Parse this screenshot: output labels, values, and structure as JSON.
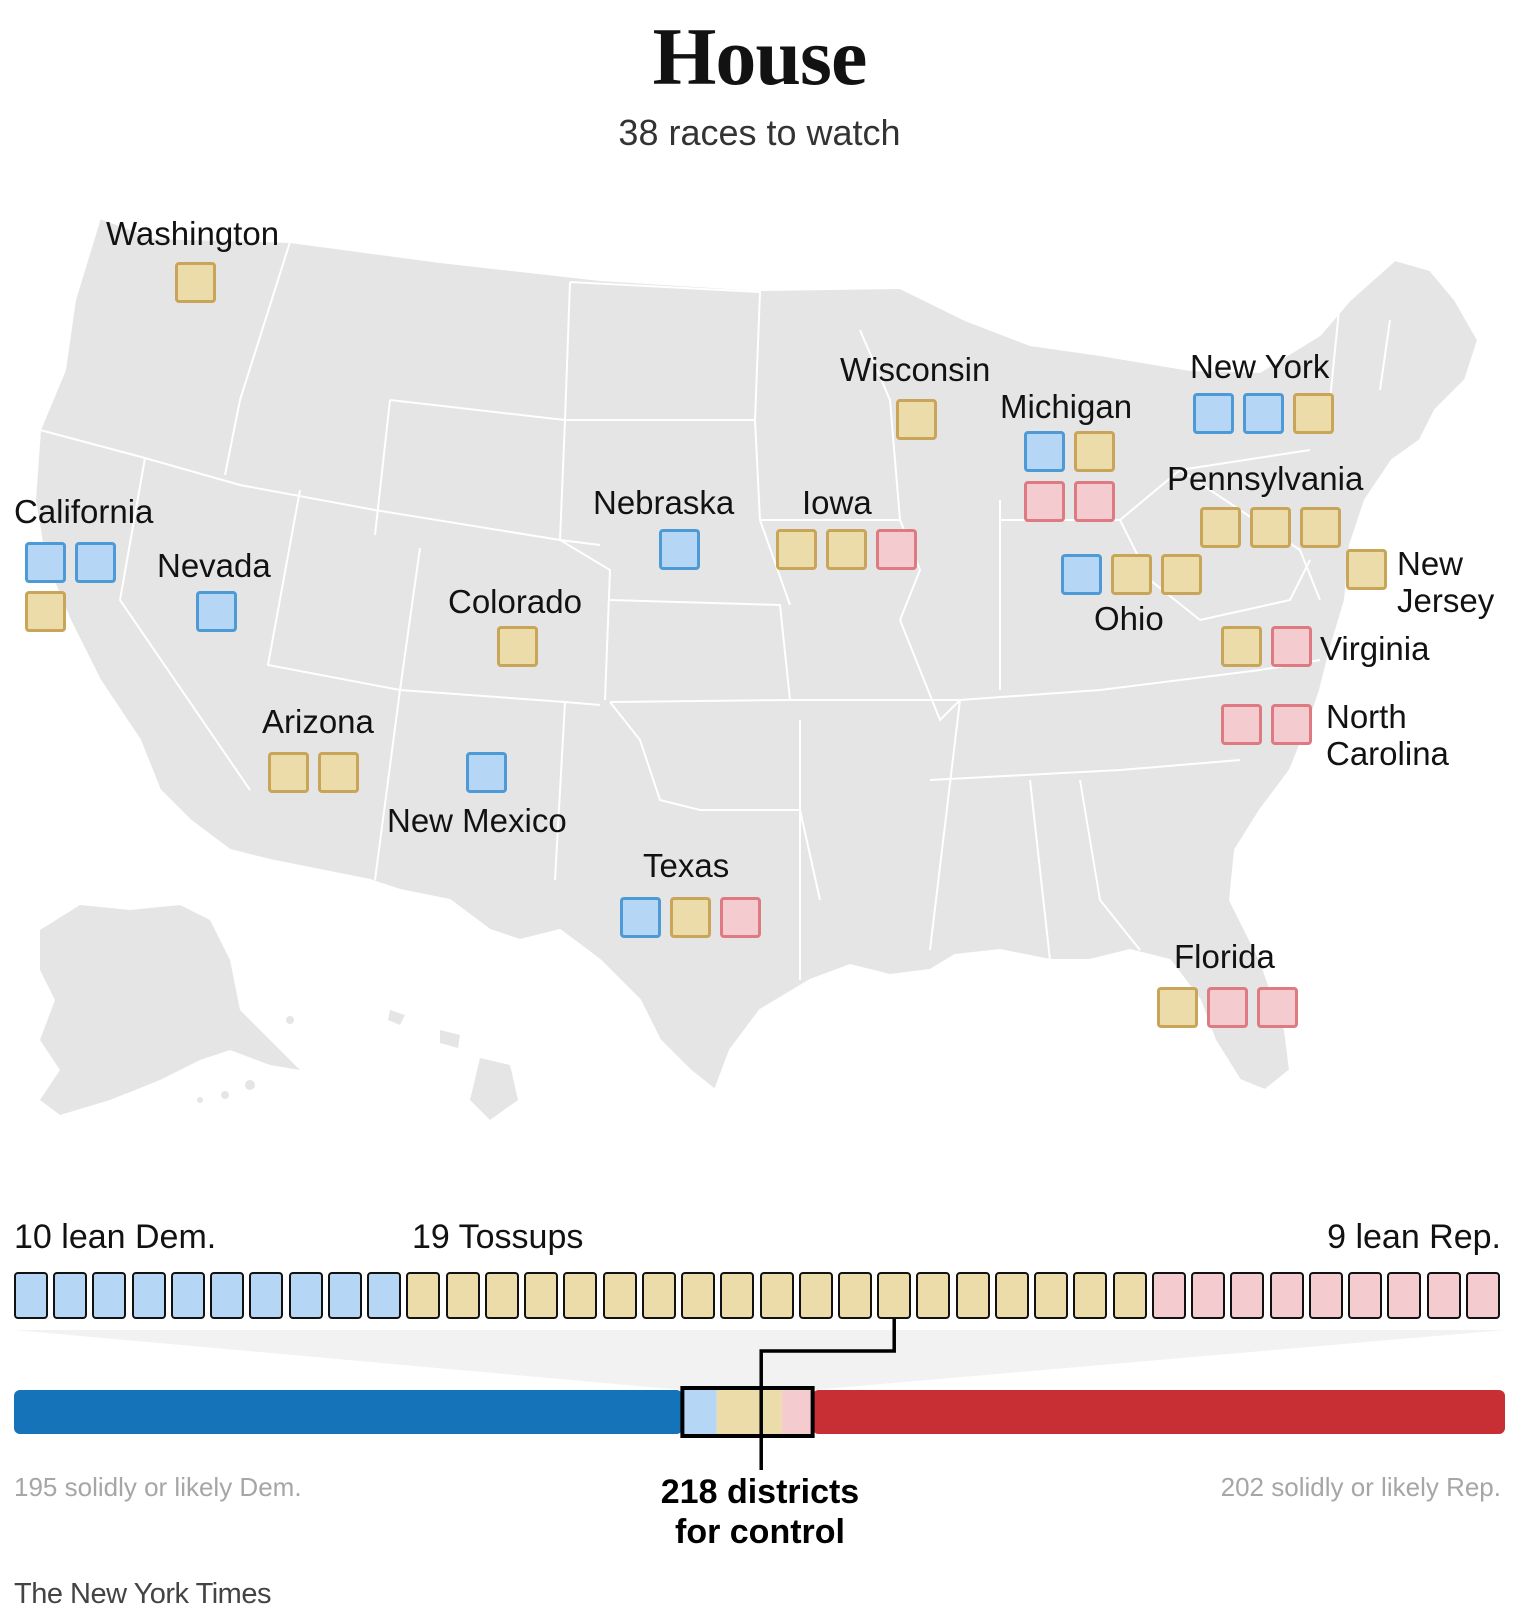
{
  "header": {
    "title": "House",
    "subtitle": "38 races to watch"
  },
  "colors": {
    "dem_solid": "#1473b9",
    "rep_solid": "#c72f35",
    "lean_dem_fill": "#b5d7f5",
    "tossup_fill": "#ecdcaa",
    "lean_rep_fill": "#f4cccf",
    "land": "#e6e5e6"
  },
  "states": [
    {
      "name": "Washington",
      "races": [
        "tossup"
      ]
    },
    {
      "name": "California",
      "races": [
        "lean_dem",
        "lean_dem",
        "tossup"
      ]
    },
    {
      "name": "Nevada",
      "races": [
        "lean_dem"
      ]
    },
    {
      "name": "Arizona",
      "races": [
        "tossup",
        "tossup"
      ]
    },
    {
      "name": "Colorado",
      "races": [
        "tossup"
      ]
    },
    {
      "name": "New Mexico",
      "races": [
        "lean_dem"
      ]
    },
    {
      "name": "Nebraska",
      "races": [
        "lean_dem"
      ]
    },
    {
      "name": "Texas",
      "races": [
        "lean_dem",
        "tossup",
        "lean_rep"
      ]
    },
    {
      "name": "Iowa",
      "races": [
        "tossup",
        "tossup",
        "lean_rep"
      ]
    },
    {
      "name": "Wisconsin",
      "races": [
        "tossup"
      ]
    },
    {
      "name": "Michigan",
      "races": [
        "lean_dem",
        "tossup",
        "lean_rep",
        "lean_rep"
      ]
    },
    {
      "name": "Ohio",
      "races": [
        "lean_dem",
        "tossup",
        "tossup"
      ]
    },
    {
      "name": "New York",
      "races": [
        "lean_dem",
        "lean_dem",
        "tossup"
      ]
    },
    {
      "name": "Pennsylvania",
      "races": [
        "tossup",
        "tossup",
        "tossup"
      ]
    },
    {
      "name": "New\nJersey",
      "races": [
        "tossup"
      ]
    },
    {
      "name": "Virginia",
      "races": [
        "tossup",
        "lean_rep"
      ]
    },
    {
      "name": "North\nCarolina",
      "races": [
        "lean_rep",
        "lean_rep"
      ]
    },
    {
      "name": "Florida",
      "races": [
        "tossup",
        "lean_rep",
        "lean_rep"
      ]
    }
  ],
  "legend": {
    "lean_dem": {
      "count": 10,
      "label": "10 lean Dem."
    },
    "tossup": {
      "count": 19,
      "label": "19 Tossups"
    },
    "lean_rep": {
      "count": 9,
      "label": "9 lean Rep."
    }
  },
  "seat_bar": {
    "solid_dem": 195,
    "solid_rep": 202,
    "lean_dem": 10,
    "tossup": 19,
    "lean_rep": 9,
    "total": 435,
    "control_threshold": 218,
    "solid_dem_label": "195 solidly or likely Dem.",
    "solid_rep_label": "202 solidly or likely Rep.",
    "control_label_line1": "218 districts",
    "control_label_line2": "for control"
  },
  "credit": "The New York Times"
}
